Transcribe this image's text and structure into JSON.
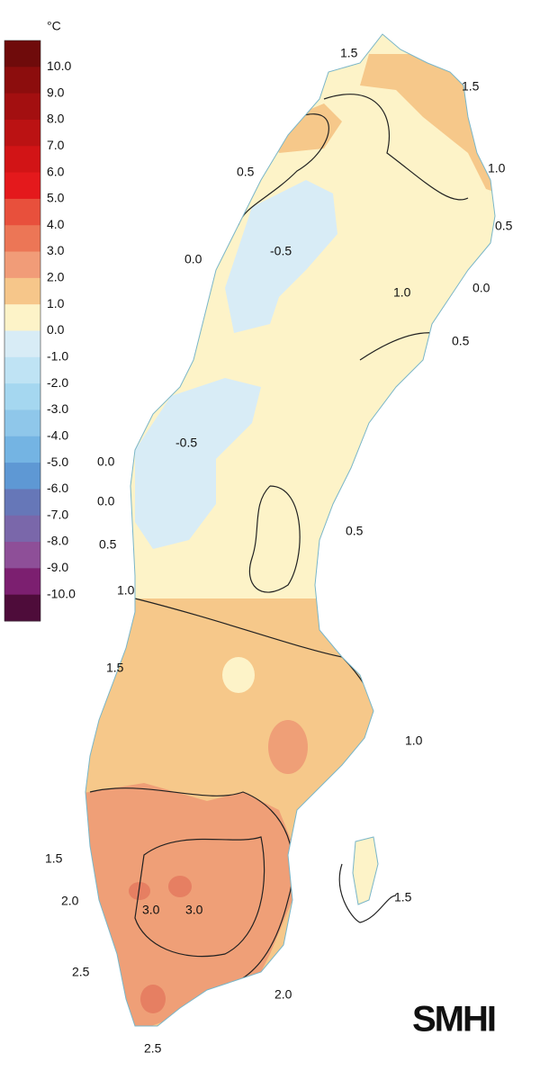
{
  "legend": {
    "unit": "°C",
    "labels": [
      "10.0",
      "9.0",
      "8.0",
      "7.0",
      "6.0",
      "5.0",
      "4.0",
      "3.0",
      "2.0",
      "1.0",
      "0.0",
      "-1.0",
      "-2.0",
      "-3.0",
      "-4.0",
      "-5.0",
      "-6.0",
      "-7.0",
      "-8.0",
      "-9.0",
      "-10.0"
    ],
    "colors": [
      "#6f0b0b",
      "#8c0d0d",
      "#a30f10",
      "#bb1213",
      "#d21416",
      "#e4191c",
      "#e8503c",
      "#ec7656",
      "#f19c78",
      "#f6c68a",
      "#fdf3c8",
      "#d8ecf6",
      "#bfe3f4",
      "#a5d7f0",
      "#8fc7ea",
      "#74b4e3",
      "#5e98d4",
      "#6677b8",
      "#7a67aa",
      "#8e4f98",
      "#7c1f70",
      "#4e0c3a"
    ]
  },
  "contour_labels": [
    "1.5",
    "1.5",
    "1.0",
    "0.5",
    "0.5",
    "-0.5",
    "0.0",
    "1.0",
    "0.0",
    "0.5",
    "-0.5",
    "0.0",
    "0.0",
    "0.5",
    "0.5",
    "1.0",
    "1.5",
    "1.0",
    "1.5",
    "2.0",
    "3.0",
    "3.0",
    "2.5",
    "2.0",
    "2.5",
    "1.5"
  ],
  "logo": "SMHI"
}
